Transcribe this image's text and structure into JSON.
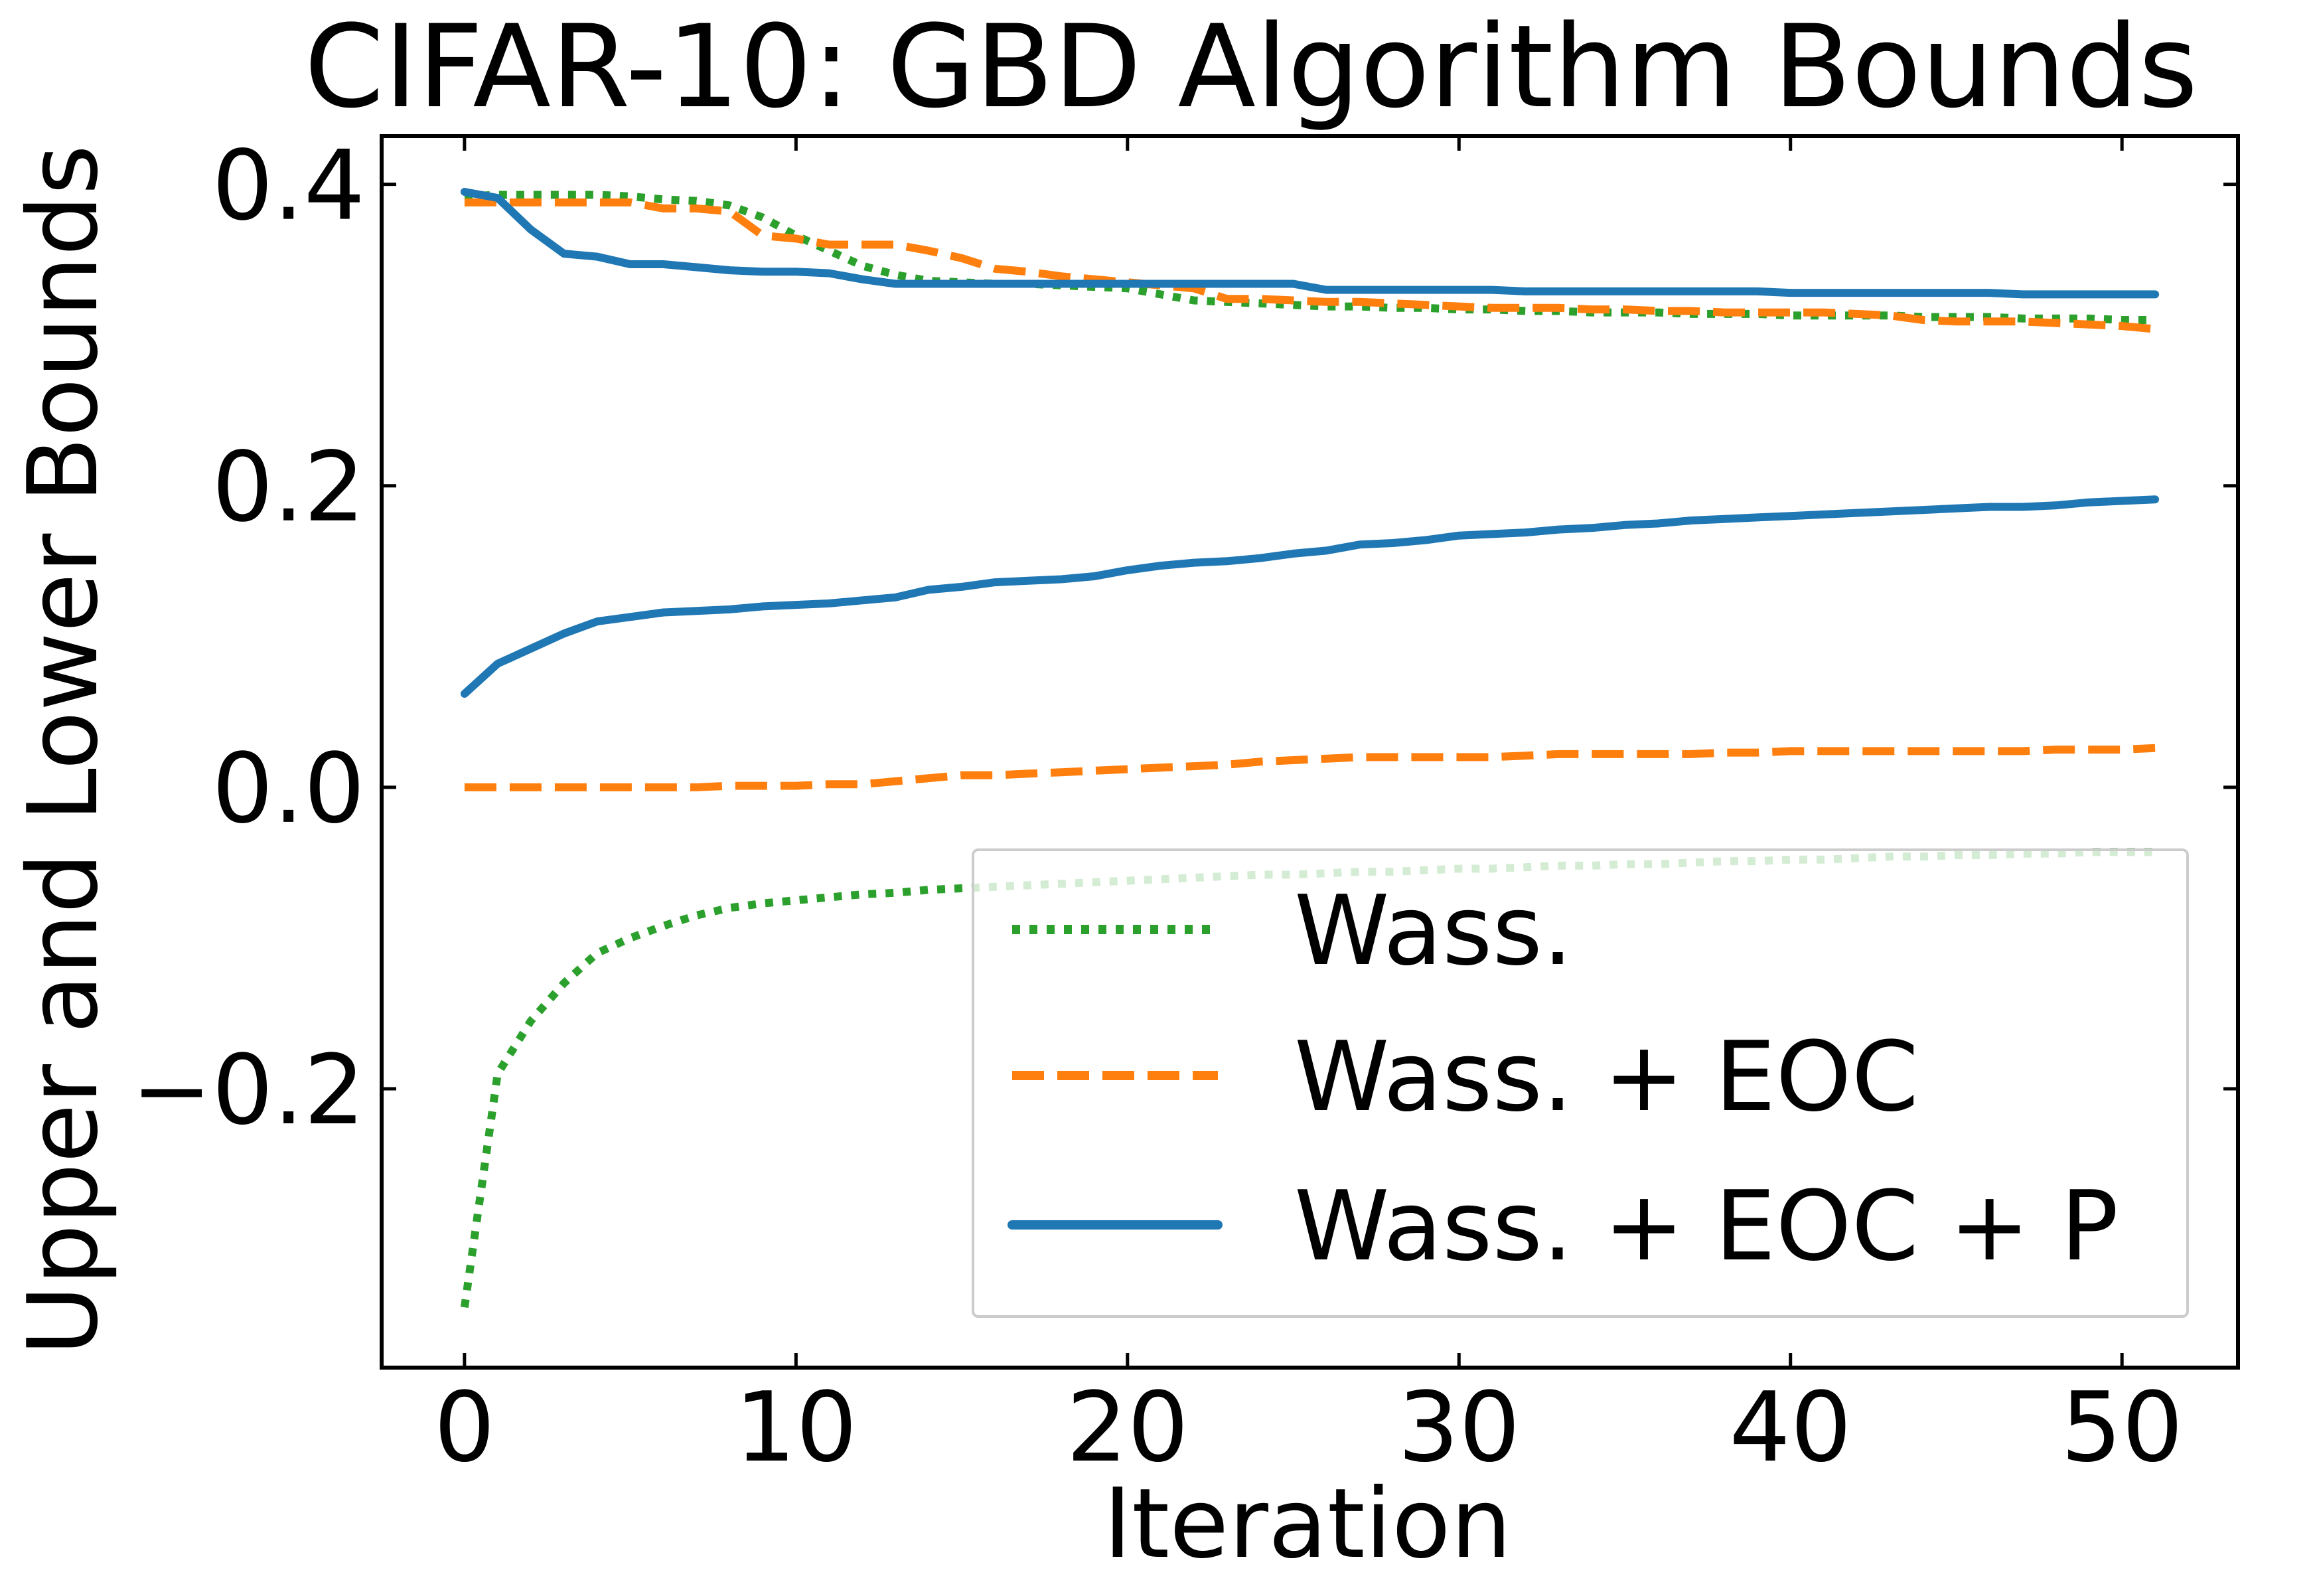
{
  "chart_data": {
    "type": "line",
    "title": "CIFAR-10: GBD Algorithm Bounds",
    "xlabel": "Iteration",
    "ylabel": "Upper and Lower Bounds",
    "xlim": [
      -2.5,
      53.5
    ],
    "ylim": [
      -0.385,
      0.432
    ],
    "xticks": [
      0,
      10,
      20,
      30,
      40,
      50
    ],
    "xtick_labels": [
      "0",
      "10",
      "20",
      "30",
      "40",
      "50"
    ],
    "yticks": [
      -0.2,
      0.0,
      0.2,
      0.4
    ],
    "ytick_labels": [
      "−0.2",
      "0.0",
      "0.2",
      "0.4"
    ],
    "grid": false,
    "legend_position": "lower-right",
    "series": [
      {
        "name": "Wass.",
        "color": "#2ca02c",
        "style": "dotted",
        "upper": [
          0.392,
          0.393,
          0.393,
          0.393,
          0.393,
          0.392,
          0.39,
          0.389,
          0.386,
          0.378,
          0.366,
          0.356,
          0.346,
          0.34,
          0.336,
          0.335,
          0.334,
          0.334,
          0.333,
          0.332,
          0.331,
          0.327,
          0.323,
          0.322,
          0.321,
          0.32,
          0.319,
          0.319,
          0.318,
          0.318,
          0.317,
          0.317,
          0.316,
          0.316,
          0.315,
          0.315,
          0.315,
          0.314,
          0.314,
          0.314,
          0.313,
          0.313,
          0.313,
          0.313,
          0.312,
          0.312,
          0.312,
          0.311,
          0.311,
          0.311,
          0.31,
          0.31
        ],
        "lower": [
          -0.345,
          -0.19,
          -0.155,
          -0.13,
          -0.11,
          -0.1,
          -0.092,
          -0.085,
          -0.08,
          -0.077,
          -0.075,
          -0.073,
          -0.071,
          -0.07,
          -0.068,
          -0.067,
          -0.066,
          -0.065,
          -0.064,
          -0.063,
          -0.062,
          -0.061,
          -0.06,
          -0.059,
          -0.058,
          -0.058,
          -0.057,
          -0.056,
          -0.056,
          -0.055,
          -0.054,
          -0.054,
          -0.053,
          -0.052,
          -0.052,
          -0.051,
          -0.051,
          -0.05,
          -0.049,
          -0.049,
          -0.048,
          -0.048,
          -0.047,
          -0.046,
          -0.046,
          -0.045,
          -0.045,
          -0.044,
          -0.044,
          -0.043,
          -0.043,
          -0.043
        ]
      },
      {
        "name": "Wass. + EOC",
        "color": "#ff7f0e",
        "style": "dashed",
        "upper": [
          0.388,
          0.388,
          0.388,
          0.388,
          0.388,
          0.388,
          0.384,
          0.384,
          0.382,
          0.366,
          0.364,
          0.36,
          0.36,
          0.36,
          0.356,
          0.351,
          0.344,
          0.342,
          0.339,
          0.337,
          0.335,
          0.333,
          0.331,
          0.324,
          0.324,
          0.323,
          0.322,
          0.322,
          0.321,
          0.32,
          0.319,
          0.318,
          0.318,
          0.318,
          0.317,
          0.317,
          0.316,
          0.316,
          0.315,
          0.315,
          0.315,
          0.315,
          0.314,
          0.313,
          0.31,
          0.309,
          0.309,
          0.309,
          0.308,
          0.307,
          0.306,
          0.304
        ],
        "lower": [
          0.0,
          0.0,
          0.0,
          0.0,
          0.0,
          0.0,
          0.0,
          0.0,
          0.001,
          0.001,
          0.001,
          0.002,
          0.002,
          0.004,
          0.006,
          0.008,
          0.008,
          0.009,
          0.01,
          0.011,
          0.012,
          0.013,
          0.014,
          0.015,
          0.017,
          0.018,
          0.019,
          0.02,
          0.02,
          0.02,
          0.02,
          0.02,
          0.021,
          0.022,
          0.022,
          0.022,
          0.022,
          0.022,
          0.023,
          0.023,
          0.024,
          0.024,
          0.024,
          0.024,
          0.024,
          0.024,
          0.024,
          0.024,
          0.025,
          0.025,
          0.025,
          0.026
        ]
      },
      {
        "name": "Wass. + EOC + P",
        "color": "#1f77b4",
        "style": "solid",
        "upper": [
          0.395,
          0.391,
          0.37,
          0.354,
          0.352,
          0.347,
          0.347,
          0.345,
          0.343,
          0.342,
          0.342,
          0.341,
          0.337,
          0.334,
          0.334,
          0.334,
          0.334,
          0.334,
          0.334,
          0.334,
          0.334,
          0.334,
          0.334,
          0.334,
          0.334,
          0.334,
          0.33,
          0.33,
          0.33,
          0.33,
          0.33,
          0.33,
          0.329,
          0.329,
          0.329,
          0.329,
          0.329,
          0.329,
          0.329,
          0.329,
          0.328,
          0.328,
          0.328,
          0.328,
          0.328,
          0.328,
          0.328,
          0.327,
          0.327,
          0.327,
          0.327,
          0.327
        ],
        "lower": [
          0.062,
          0.082,
          0.092,
          0.102,
          0.11,
          0.113,
          0.116,
          0.117,
          0.118,
          0.12,
          0.121,
          0.122,
          0.124,
          0.126,
          0.131,
          0.133,
          0.136,
          0.137,
          0.138,
          0.14,
          0.144,
          0.147,
          0.149,
          0.15,
          0.152,
          0.155,
          0.157,
          0.161,
          0.162,
          0.164,
          0.167,
          0.168,
          0.169,
          0.171,
          0.172,
          0.174,
          0.175,
          0.177,
          0.178,
          0.179,
          0.18,
          0.181,
          0.182,
          0.183,
          0.184,
          0.185,
          0.186,
          0.186,
          0.187,
          0.189,
          0.19,
          0.191
        ]
      }
    ]
  }
}
